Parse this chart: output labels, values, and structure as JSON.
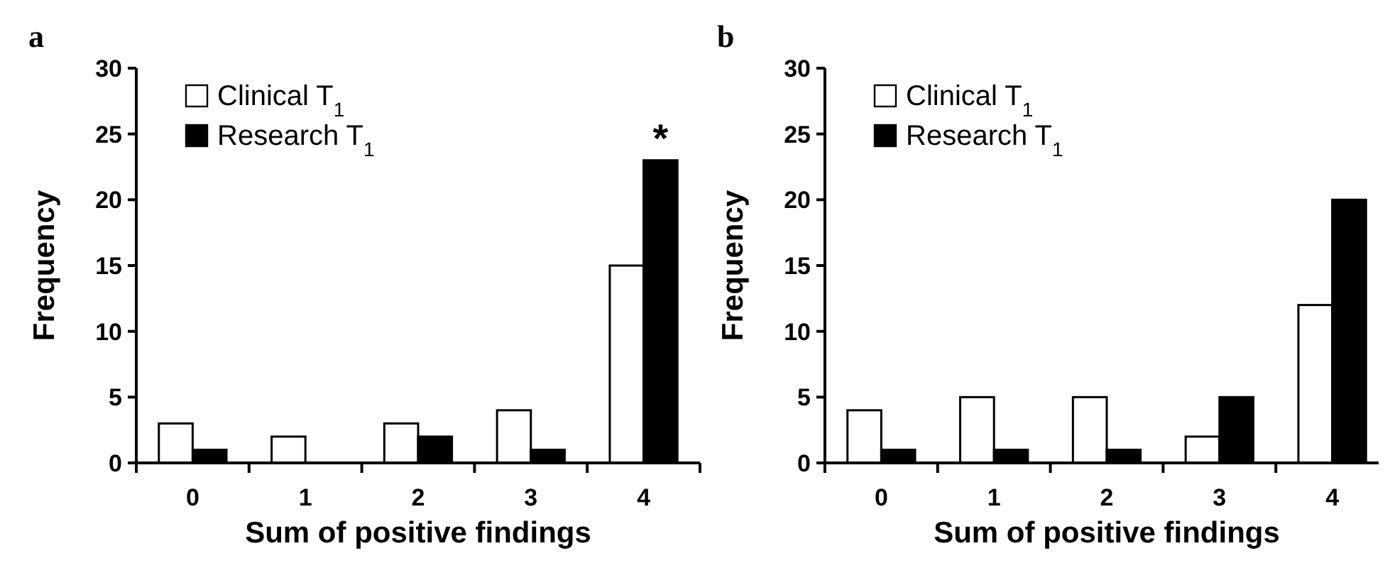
{
  "chart_data": [
    {
      "type": "bar",
      "title": "a",
      "xlabel": "Sum of positive findings",
      "ylabel": "Frequency",
      "categories": [
        "0",
        "1",
        "2",
        "3",
        "4"
      ],
      "series": [
        {
          "name": "Clinical T$_{1}$",
          "color": "#ffffff",
          "values": [
            3,
            2,
            3,
            4,
            15
          ]
        },
        {
          "name": "Research T$_{1}$",
          "color": "#000000",
          "values": [
            1,
            0,
            2,
            1,
            23
          ]
        }
      ],
      "ylim": [
        0,
        30
      ],
      "yticks": [
        0,
        5,
        10,
        15,
        20,
        25,
        30
      ],
      "legend": "top left",
      "annotations": [
        "*"
      ]
    },
    {
      "type": "bar",
      "title": "b",
      "xlabel": "Sum of positive findings",
      "ylabel": "Frequency",
      "categories": [
        "0",
        "1",
        "2",
        "3",
        "4"
      ],
      "series": [
        {
          "name": "Clinical T$_{1}$",
          "color": "#ffffff",
          "values": [
            4,
            5,
            5,
            2,
            12
          ]
        },
        {
          "name": "Research T$_{1}$",
          "color": "#000000",
          "values": [
            1,
            1,
            1,
            5,
            20
          ]
        }
      ],
      "ylim": [
        0,
        30
      ],
      "yticks": [
        0,
        5,
        10,
        15,
        20,
        25,
        30
      ],
      "legend": "top left"
    }
  ]
}
